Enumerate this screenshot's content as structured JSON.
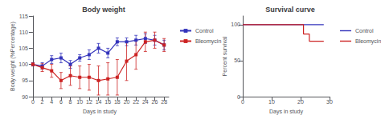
{
  "chart_data": [
    {
      "type": "line",
      "title": "Body weight",
      "x_label": "Days in study",
      "y_label": "Body weight (%Percentage)",
      "x": [
        0,
        2,
        4,
        6,
        8,
        10,
        12,
        14,
        16,
        18,
        20,
        22,
        24,
        26,
        28
      ],
      "series": [
        {
          "name": "Control",
          "color": "#3333bb",
          "marker": "square",
          "values": [
            100,
            99.5,
            101.5,
            102,
            100,
            102,
            103,
            105,
            103.5,
            107,
            107,
            107.5,
            108,
            107.5,
            106
          ],
          "errors": [
            0.5,
            1.0,
            1.2,
            1.5,
            1.2,
            1.0,
            1.5,
            1.5,
            1.5,
            1.2,
            1.2,
            1.5,
            1.5,
            1.5,
            1.5
          ]
        },
        {
          "name": "Bleomycin",
          "color": "#cc2222",
          "marker": "square",
          "values": [
            100,
            99,
            98,
            95,
            96.5,
            96,
            96,
            95,
            95.5,
            96,
            101,
            103,
            107,
            107.5,
            106
          ],
          "errors": [
            0.5,
            1.2,
            2.0,
            2.5,
            3.0,
            3.5,
            4.0,
            4.5,
            5.0,
            5.5,
            6.0,
            4.5,
            3.0,
            2.5,
            2.0
          ]
        }
      ],
      "xlim": [
        -0.5,
        29
      ],
      "xticks": [
        0,
        2,
        4,
        6,
        8,
        10,
        12,
        14,
        16,
        18,
        20,
        22,
        24,
        26,
        28
      ],
      "ylim": [
        90,
        115
      ],
      "yticks": [
        90,
        95,
        100,
        105,
        110,
        115
      ],
      "grid": false,
      "legend": "right"
    },
    {
      "type": "line",
      "title": "Survival curve",
      "x_label": "Days in study",
      "y_label": "Percent survival",
      "series": [
        {
          "name": "Control",
          "color": "#3333bb",
          "x": [
            0,
            28
          ],
          "values": [
            100,
            100
          ]
        },
        {
          "name": "Bleomycin",
          "color": "#cc2222",
          "x": [
            0,
            21,
            21,
            23,
            23,
            28
          ],
          "values": [
            100,
            100,
            87,
            87,
            77,
            77
          ]
        }
      ],
      "xlim": [
        0,
        30
      ],
      "xticks": [
        0,
        10,
        20,
        30
      ],
      "ylim": [
        0,
        112
      ],
      "yticks": [
        0,
        50,
        100
      ],
      "grid": false,
      "legend": "right"
    }
  ]
}
